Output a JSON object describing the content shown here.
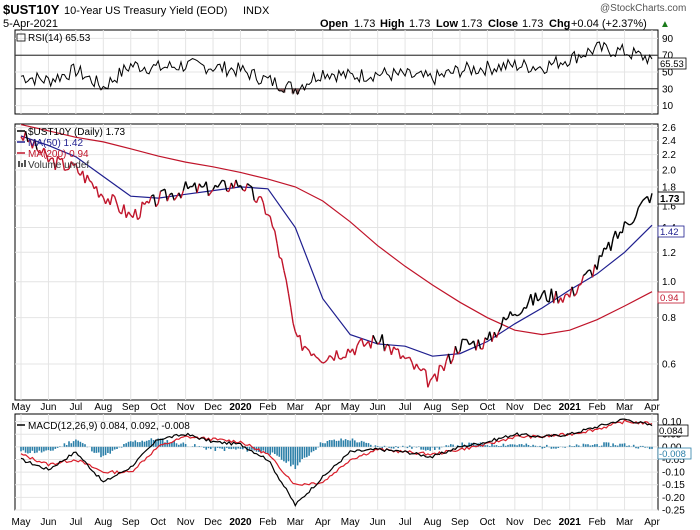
{
  "header": {
    "symbol": "$UST10Y",
    "description": "10-Year US Treasury Yield (EOD)",
    "exchange": "INDX",
    "date": "5-Apr-2021",
    "watermark": "@StockCharts.com",
    "open_label": "Open",
    "open": "1.73",
    "high_label": "High",
    "high": "1.73",
    "low_label": "Low",
    "low": "1.73",
    "close_label": "Close",
    "close": "1.73",
    "chg_label": "Chg",
    "chg": "+0.04 (+2.37%)",
    "chg_arrow": "▲"
  },
  "months": [
    "May",
    "Jun",
    "Jul",
    "Aug",
    "Sep",
    "Oct",
    "Nov",
    "Dec",
    "2020",
    "Feb",
    "Mar",
    "Apr",
    "May",
    "Jun",
    "Jul",
    "Aug",
    "Sep",
    "Oct",
    "Nov",
    "Dec",
    "2021",
    "Feb",
    "Mar",
    "Apr"
  ],
  "colors": {
    "price": "#000000",
    "ma50": "#1f1f8f",
    "ma200": "#c0142a",
    "macd": "#000000",
    "signal": "#d91e2a",
    "hist": "#2b7fa8",
    "rsi_fill": "#8a5a5a",
    "grid": "#e4e4e4"
  },
  "chart_data": [
    {
      "type": "line",
      "panel": "rsi",
      "legend": "RSI(14) 65.53",
      "value_label": "65.53",
      "ylim": [
        0,
        100
      ],
      "y_ticks": [
        "90",
        "70",
        "50",
        "30",
        "10"
      ],
      "levels": [
        70,
        30
      ],
      "x": [
        "2019-05-01",
        "2019-06-01",
        "2019-07-01",
        "2019-08-01",
        "2019-09-01",
        "2019-10-01",
        "2019-11-01",
        "2019-12-01",
        "2020-01-01",
        "2020-02-01",
        "2020-03-01",
        "2020-04-01",
        "2020-05-01",
        "2020-06-01",
        "2020-07-01",
        "2020-08-01",
        "2020-09-01",
        "2020-10-01",
        "2020-11-01",
        "2020-12-01",
        "2021-01-01",
        "2021-02-01",
        "2021-03-01",
        "2021-04-05"
      ],
      "series": [
        {
          "values": [
            45,
            40,
            52,
            32,
            58,
            55,
            58,
            56,
            52,
            40,
            30,
            50,
            45,
            48,
            46,
            42,
            52,
            55,
            58,
            56,
            66,
            78,
            74,
            65.5
          ]
        }
      ]
    },
    {
      "type": "line",
      "panel": "price",
      "legend": [
        "$UST10Y (Daily) 1.73",
        "MA(50) 1.42",
        "MA(200) 0.94",
        "Volume undef"
      ],
      "y_ticks": [
        "2.6",
        "2.4",
        "2.2",
        "2.0",
        "1.8",
        "1.6",
        "1.4",
        "1.2",
        "1.0",
        "0.8",
        "0.6"
      ],
      "ylim": [
        0.48,
        2.66
      ],
      "y_scale": "log",
      "value_labels": [
        "1.73",
        "1.42",
        "0.94"
      ],
      "x": [
        "2019-05-01",
        "2019-06-01",
        "2019-07-01",
        "2019-08-01",
        "2019-09-01",
        "2019-10-01",
        "2019-11-01",
        "2019-12-01",
        "2020-01-01",
        "2020-02-01",
        "2020-03-01",
        "2020-04-01",
        "2020-05-01",
        "2020-06-01",
        "2020-07-01",
        "2020-08-01",
        "2020-09-01",
        "2020-10-01",
        "2020-11-01",
        "2020-12-01",
        "2021-01-01",
        "2021-02-01",
        "2021-03-01",
        "2021-04-05"
      ],
      "series": [
        {
          "name": "$UST10Y (Daily)",
          "values": [
            2.5,
            2.13,
            2.02,
            1.72,
            1.5,
            1.67,
            1.78,
            1.78,
            1.85,
            1.55,
            0.7,
            0.63,
            0.66,
            0.7,
            0.62,
            0.53,
            0.68,
            0.69,
            0.84,
            0.92,
            0.92,
            1.11,
            1.41,
            1.73
          ]
        },
        {
          "name": "MA(50)",
          "values": [
            2.47,
            2.33,
            2.17,
            1.92,
            1.7,
            1.68,
            1.72,
            1.76,
            1.8,
            1.78,
            1.4,
            0.9,
            0.72,
            0.68,
            0.67,
            0.63,
            0.64,
            0.69,
            0.77,
            0.85,
            0.95,
            1.05,
            1.2,
            1.42
          ]
        },
        {
          "name": "MA(200)",
          "values": [
            2.65,
            2.55,
            2.45,
            2.38,
            2.28,
            2.18,
            2.1,
            2.04,
            1.97,
            1.89,
            1.8,
            1.65,
            1.45,
            1.25,
            1.1,
            0.98,
            0.88,
            0.8,
            0.74,
            0.72,
            0.74,
            0.79,
            0.86,
            0.94
          ]
        }
      ]
    },
    {
      "type": "line",
      "panel": "macd",
      "legend": "MACD(12,26,9) 0.084, 0.092, -0.008",
      "value_labels": [
        "0.084",
        "-0.008"
      ],
      "ylim": [
        -0.25,
        0.13
      ],
      "y_ticks": [
        "0.10",
        "0.05",
        "0.00",
        "-0.05",
        "-0.10",
        "-0.15",
        "-0.20",
        "-0.25"
      ],
      "x": [
        "2019-05-01",
        "2019-06-01",
        "2019-07-01",
        "2019-08-01",
        "2019-09-01",
        "2019-10-01",
        "2019-11-01",
        "2019-12-01",
        "2020-01-01",
        "2020-02-01",
        "2020-03-01",
        "2020-04-01",
        "2020-05-01",
        "2020-06-01",
        "2020-07-01",
        "2020-08-01",
        "2020-09-01",
        "2020-10-01",
        "2020-11-01",
        "2020-12-01",
        "2021-01-01",
        "2021-02-01",
        "2021-03-01",
        "2021-04-05"
      ],
      "series": [
        {
          "name": "MACD",
          "values": [
            -0.05,
            -0.09,
            -0.02,
            -0.14,
            -0.08,
            0.03,
            0.05,
            0.02,
            0.01,
            -0.05,
            -0.23,
            -0.12,
            -0.02,
            -0.01,
            -0.02,
            -0.04,
            0.0,
            0.02,
            0.05,
            0.04,
            0.05,
            0.08,
            0.11,
            0.084
          ]
        },
        {
          "name": "Signal",
          "values": [
            -0.03,
            -0.07,
            -0.05,
            -0.1,
            -0.1,
            0.0,
            0.04,
            0.03,
            0.02,
            -0.03,
            -0.15,
            -0.14,
            -0.05,
            -0.01,
            -0.02,
            -0.03,
            -0.01,
            0.01,
            0.04,
            0.04,
            0.05,
            0.07,
            0.1,
            0.092
          ]
        },
        {
          "name": "Histogram",
          "values": [
            -0.02,
            -0.02,
            0.03,
            -0.04,
            0.02,
            0.03,
            0.01,
            -0.01,
            -0.01,
            -0.02,
            -0.08,
            0.02,
            0.03,
            0.0,
            0.0,
            -0.01,
            0.01,
            0.01,
            0.01,
            0.0,
            0.0,
            0.01,
            0.01,
            -0.008
          ]
        }
      ]
    }
  ]
}
